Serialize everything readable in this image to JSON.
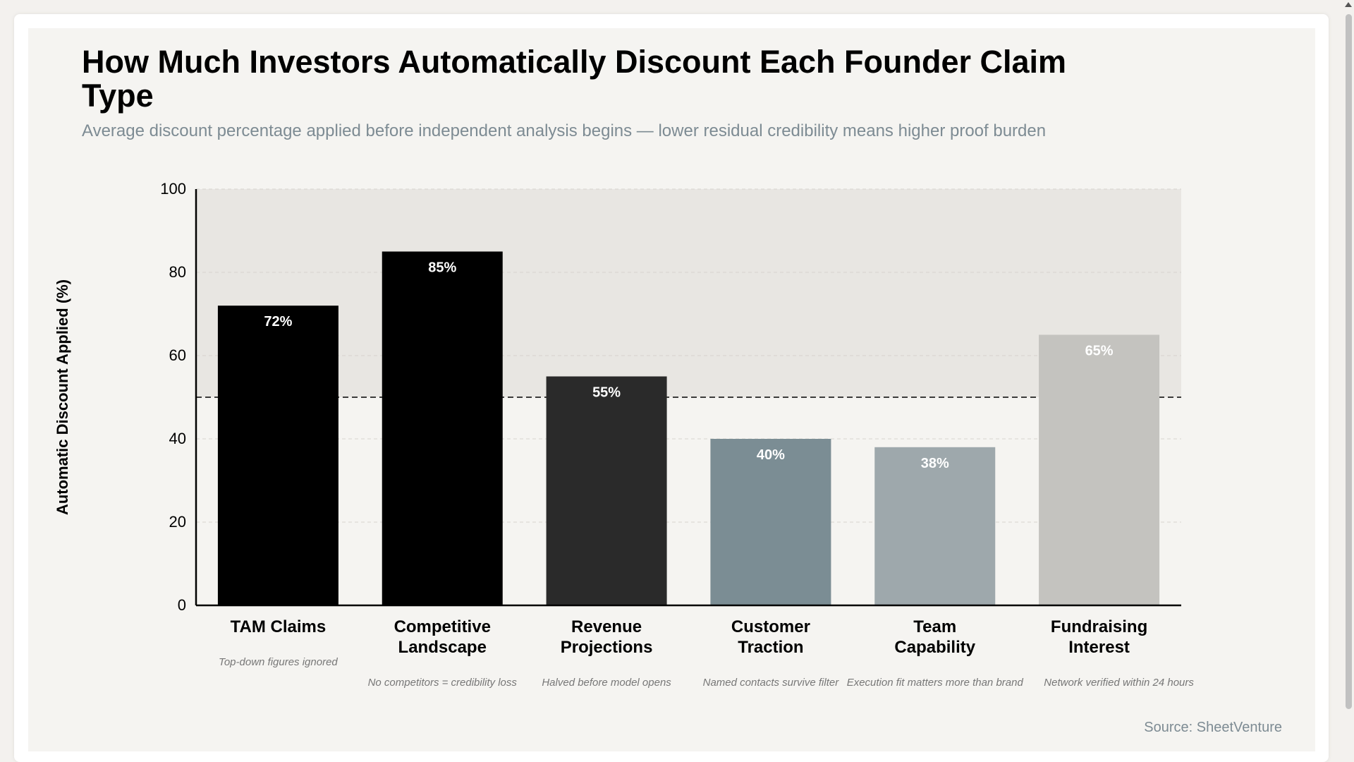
{
  "page": {
    "title": "How Much Investors Automatically Discount Each Founder Claim Type",
    "subtitle": "Average discount percentage applied before independent analysis begins — lower residual credibility means higher proof burden",
    "source": "Source: SheetVenture"
  },
  "colors": {
    "background": "#f5f4f1",
    "zone": "#e8e6e2",
    "grid": "#d6d3ce",
    "threshold": "#000000"
  },
  "chart_data": {
    "type": "bar",
    "ylabel": "Automatic Discount Applied (%)",
    "ylim": [
      0,
      100
    ],
    "yticks": [
      "0",
      "20",
      "40",
      "60",
      "80",
      "100"
    ],
    "grid": true,
    "threshold": 50,
    "zone_from": 50,
    "categories": [
      {
        "label": [
          "TAM Claims"
        ],
        "value": 72,
        "value_label": "72%",
        "note": "Top-down figures ignored",
        "color": "#000000"
      },
      {
        "label": [
          "Competitive",
          "Landscape"
        ],
        "value": 85,
        "value_label": "85%",
        "note": "No competitors = credibility loss",
        "color": "#000000"
      },
      {
        "label": [
          "Revenue",
          "Projections"
        ],
        "value": 55,
        "value_label": "55%",
        "note": "Halved before model opens",
        "color": "#2a2a2a"
      },
      {
        "label": [
          "Customer",
          "Traction"
        ],
        "value": 40,
        "value_label": "40%",
        "note": "Named contacts survive filter",
        "color": "#7b8d94"
      },
      {
        "label": [
          "Team",
          "Capability"
        ],
        "value": 38,
        "value_label": "38%",
        "note": "Execution fit matters more than brand",
        "color": "#9ea8ac"
      },
      {
        "label": [
          "Fundraising",
          "Interest"
        ],
        "value": 65,
        "value_label": "65%",
        "note": "Network verified within 24 hours",
        "color": "#c4c3bf"
      }
    ]
  }
}
